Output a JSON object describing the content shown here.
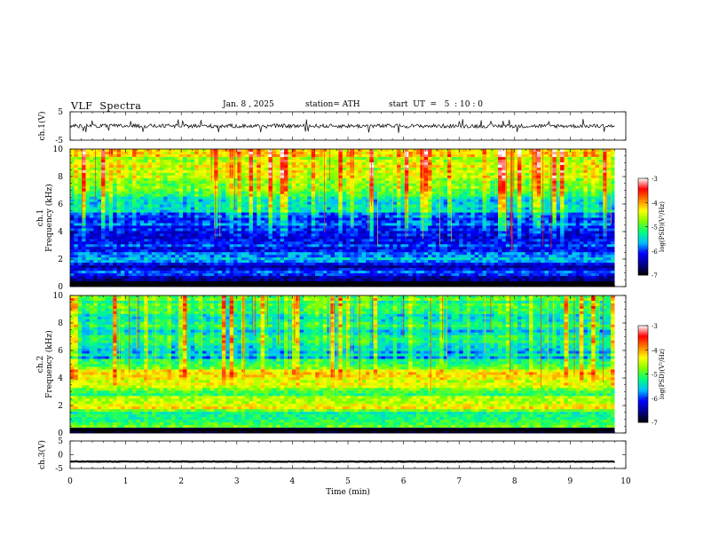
{
  "header": {
    "title": "VLF  Spectra",
    "date": "Jan. 8 , 2025",
    "station": "station= ATH",
    "start_ut": "start  UT  =   5  : 10 : 0"
  },
  "colors": {
    "colormap": [
      "#000000",
      "#00008b",
      "#0000ff",
      "#00bfff",
      "#00ff80",
      "#80ff00",
      "#ffff00",
      "#ff8000",
      "#ff0000",
      "#ffffff"
    ]
  },
  "chart_data": [
    {
      "type": "line",
      "panel": "ch1-waveform",
      "ylabel": "ch.1(V)",
      "ylim": [
        -5,
        5
      ],
      "yticks": [
        "5",
        "-5"
      ],
      "xlim": [
        0,
        10
      ],
      "description_values": {
        "baseline_v": 0,
        "typical_amplitude_v": 0.7,
        "max_spike_v": 2.5
      }
    },
    {
      "type": "heatmap",
      "panel": "ch1-spectrogram",
      "ylabel_channel": "ch.1",
      "ylabel": "Frequency  (kHz)",
      "ylim": [
        0,
        10
      ],
      "yticks": [
        "0",
        "2",
        "4",
        "6",
        "8",
        "10"
      ],
      "xlim": [
        0,
        9.8
      ],
      "colorbar": {
        "label": "log(PSD)(V²/Hz)",
        "range": [
          -7,
          -3
        ],
        "ticks": [
          "-3",
          "-4",
          "-5",
          "-6",
          "-7"
        ]
      },
      "band_profile": [
        {
          "f_khz": 0.2,
          "value": -7.0
        },
        {
          "f_khz": 0.5,
          "value": -6.5
        },
        {
          "f_khz": 1.0,
          "value": -5.8
        },
        {
          "f_khz": 1.5,
          "value": -6.4
        },
        {
          "f_khz": 2.0,
          "value": -5.4
        },
        {
          "f_khz": 2.5,
          "value": -6.0
        },
        {
          "f_khz": 3.0,
          "value": -5.9
        },
        {
          "f_khz": 4.0,
          "value": -6.3
        },
        {
          "f_khz": 5.0,
          "value": -6.0
        },
        {
          "f_khz": 6.0,
          "value": -5.6
        },
        {
          "f_khz": 7.0,
          "value": -5.2
        },
        {
          "f_khz": 8.0,
          "value": -4.9
        },
        {
          "f_khz": 9.0,
          "value": -4.7
        },
        {
          "f_khz": 10.0,
          "value": -4.6
        }
      ]
    },
    {
      "type": "heatmap",
      "panel": "ch2-spectrogram",
      "ylabel_channel": "ch.2",
      "ylabel": "Frequency  (kHz)",
      "ylim": [
        0,
        10
      ],
      "yticks": [
        "0",
        "2",
        "4",
        "6",
        "8",
        "10"
      ],
      "xlim": [
        0,
        9.8
      ],
      "colorbar": {
        "label": "log(PSD)(V²/Hz)",
        "range": [
          -7,
          -3
        ],
        "ticks": [
          "-3",
          "-4",
          "-5",
          "-6",
          "-7"
        ]
      },
      "band_profile": [
        {
          "f_khz": 0.2,
          "value": -7.0
        },
        {
          "f_khz": 0.5,
          "value": -5.0
        },
        {
          "f_khz": 1.0,
          "value": -5.3
        },
        {
          "f_khz": 1.5,
          "value": -5.1
        },
        {
          "f_khz": 2.0,
          "value": -4.2
        },
        {
          "f_khz": 2.5,
          "value": -4.8
        },
        {
          "f_khz": 3.0,
          "value": -5.1
        },
        {
          "f_khz": 3.5,
          "value": -4.6
        },
        {
          "f_khz": 4.5,
          "value": -4.5
        },
        {
          "f_khz": 5.5,
          "value": -5.7
        },
        {
          "f_khz": 7.0,
          "value": -5.6
        },
        {
          "f_khz": 8.5,
          "value": -5.4
        },
        {
          "f_khz": 10.0,
          "value": -5.2
        }
      ]
    },
    {
      "type": "line",
      "panel": "ch3-waveform",
      "ylabel": "ch.3(V)",
      "ylim": [
        -5,
        5
      ],
      "yticks": [
        "5",
        "0",
        "-5"
      ],
      "xlim": [
        0,
        10
      ],
      "description_values": {
        "baseline_v": -2.5,
        "typical_amplitude_v": 0.1
      }
    }
  ],
  "x_axis": {
    "label": "Time  (min)",
    "ticks": [
      "0",
      "1",
      "2",
      "3",
      "4",
      "5",
      "6",
      "7",
      "8",
      "9",
      "10"
    ]
  }
}
